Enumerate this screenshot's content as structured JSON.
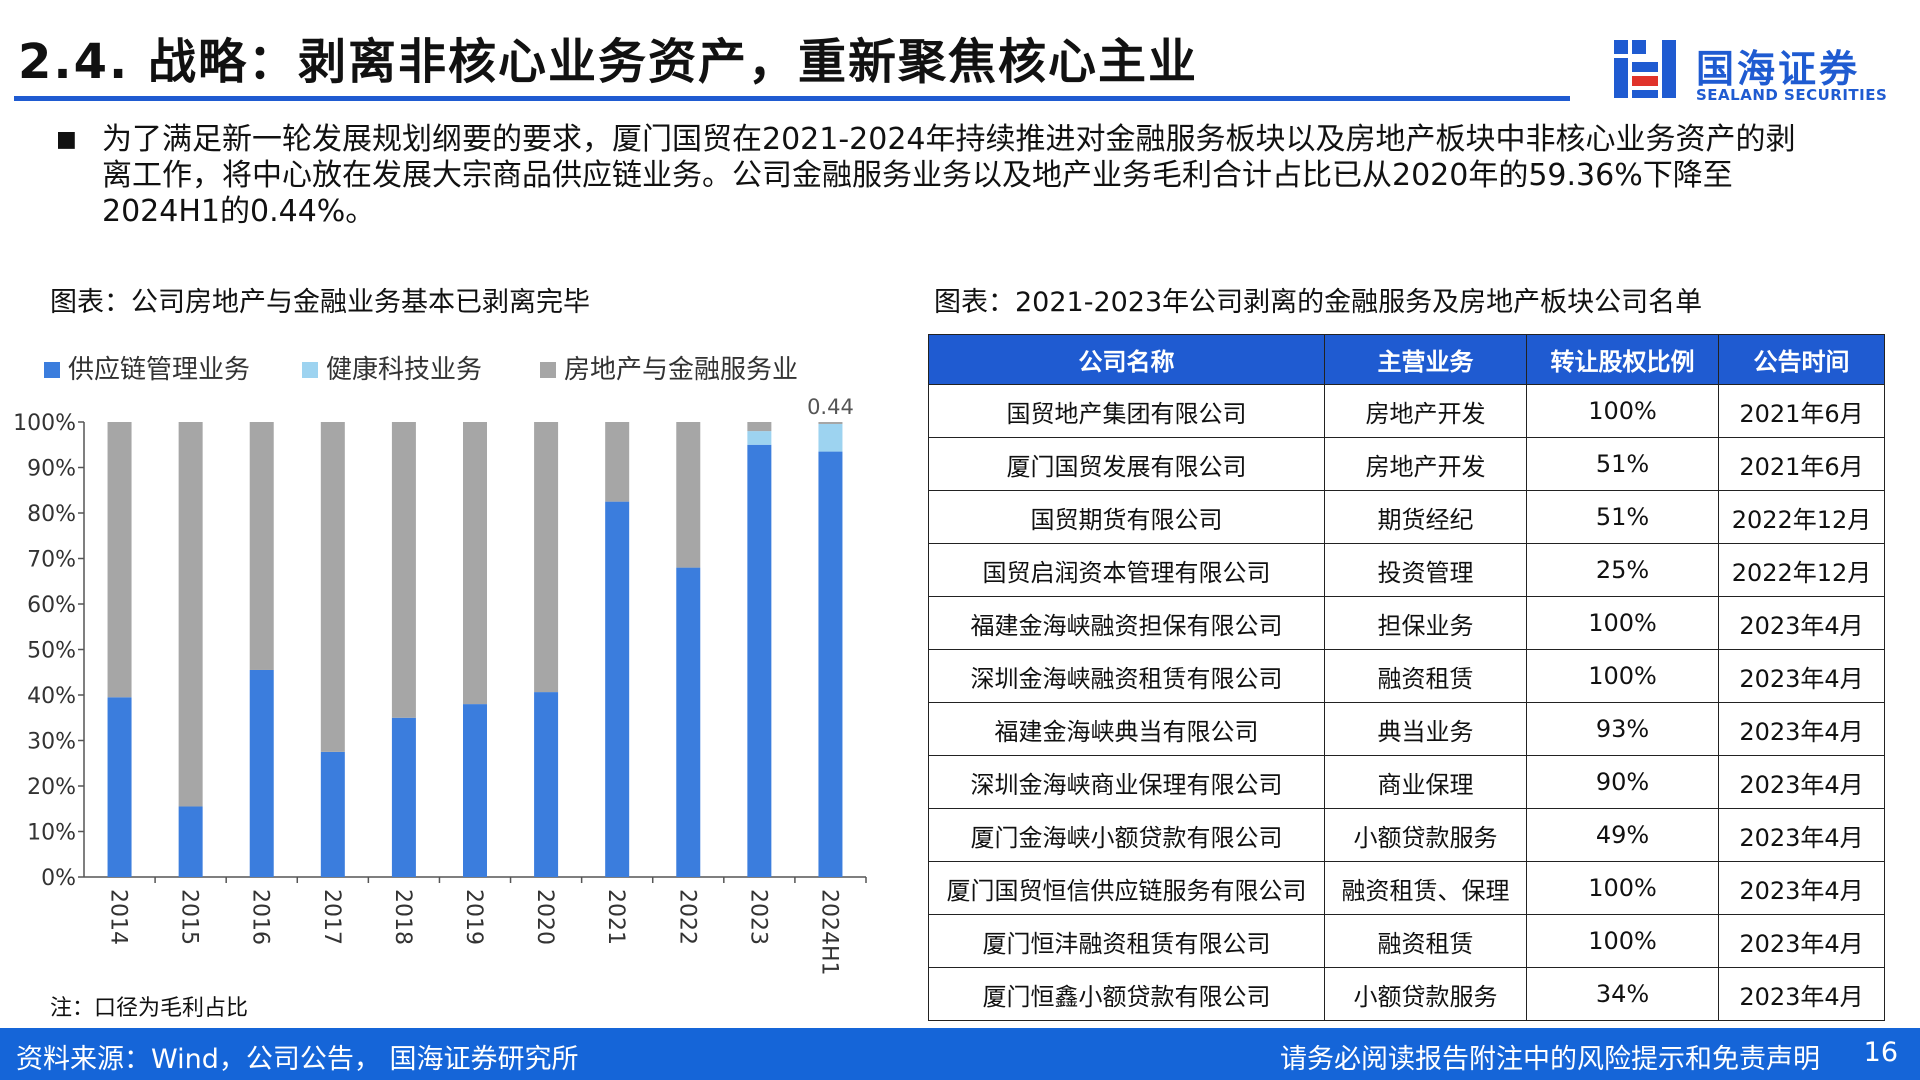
{
  "header": {
    "title": "2.4. 战略：剥离非核心业务资产，重新聚焦核心主业",
    "logo_cn": "国海证券",
    "logo_en": "SEALAND SECURITIES"
  },
  "bullet": {
    "mark": "■",
    "text": "为了满足新一轮发展规划纲要的要求，厦门国贸在2021-2024年持续推进对金融服务板块以及房地产板块中非核心业务资产的剥离工作，将中心放在发展大宗商品供应链业务。公司金融服务业务以及地产业务毛利合计占比已从2020年的59.36%下降至2024H1的0.44%。"
  },
  "left_caption": "图表：公司房地产与金融业务基本已剥离完毕",
  "right_caption": "图表：2021-2023年公司剥离的金融服务及房地产板块公司名单",
  "chart_note": "注：口径为毛利占比",
  "chart_data": {
    "type": "bar",
    "stacked": true,
    "categories": [
      "2014",
      "2015",
      "2016",
      "2017",
      "2018",
      "2019",
      "2020",
      "2021",
      "2022",
      "2023",
      "2024H1"
    ],
    "series": [
      {
        "name": "供应链管理业务",
        "color": "#3b7ddd",
        "values": [
          39.5,
          15.5,
          45.5,
          27.5,
          35,
          38,
          40.64,
          82.5,
          68,
          95,
          93.5
        ]
      },
      {
        "name": "健康科技业务",
        "color": "#9dd3f0",
        "values": [
          0,
          0,
          0,
          0,
          0,
          0,
          0,
          0,
          0,
          3,
          6.06
        ]
      },
      {
        "name": "房地产与金融服务业",
        "color": "#a6a6a6",
        "values": [
          60.5,
          84.5,
          54.5,
          72.5,
          65,
          62,
          59.36,
          17.5,
          32,
          2,
          0.44
        ]
      }
    ],
    "annotation": "0.44",
    "ylim": [
      0,
      100
    ],
    "yticks": [
      "0%",
      "10%",
      "20%",
      "30%",
      "40%",
      "50%",
      "60%",
      "70%",
      "80%",
      "90%",
      "100%"
    ],
    "legend_position": "top",
    "grid": false
  },
  "table": {
    "headers": [
      "公司名称",
      "主营业务",
      "转让股权比例",
      "公告时间"
    ],
    "rows": [
      [
        "国贸地产集团有限公司",
        "房地产开发",
        "100%",
        "2021年6月"
      ],
      [
        "厦门国贸发展有限公司",
        "房地产开发",
        "51%",
        "2021年6月"
      ],
      [
        "国贸期货有限公司",
        "期货经纪",
        "51%",
        "2022年12月"
      ],
      [
        "国贸启润资本管理有限公司",
        "投资管理",
        "25%",
        "2022年12月"
      ],
      [
        "福建金海峡融资担保有限公司",
        "担保业务",
        "100%",
        "2023年4月"
      ],
      [
        "深圳金海峡融资租赁有限公司",
        "融资租赁",
        "100%",
        "2023年4月"
      ],
      [
        "福建金海峡典当有限公司",
        "典当业务",
        "93%",
        "2023年4月"
      ],
      [
        "深圳金海峡商业保理有限公司",
        "商业保理",
        "90%",
        "2023年4月"
      ],
      [
        "厦门金海峡小额贷款有限公司",
        "小额贷款服务",
        "49%",
        "2023年4月"
      ],
      [
        "厦门国贸恒信供应链服务有限公司",
        "融资租赁、保理",
        "100%",
        "2023年4月"
      ],
      [
        "厦门恒沣融资租赁有限公司",
        "融资租赁",
        "100%",
        "2023年4月"
      ],
      [
        "厦门恒鑫小额贷款有限公司",
        "小额贷款服务",
        "34%",
        "2023年4月"
      ]
    ]
  },
  "footer": {
    "source": "资料来源：Wind，公司公告， 国海证券研究所",
    "disclaimer": "请务必阅读报告附注中的风险提示和免责声明",
    "page": "16"
  }
}
